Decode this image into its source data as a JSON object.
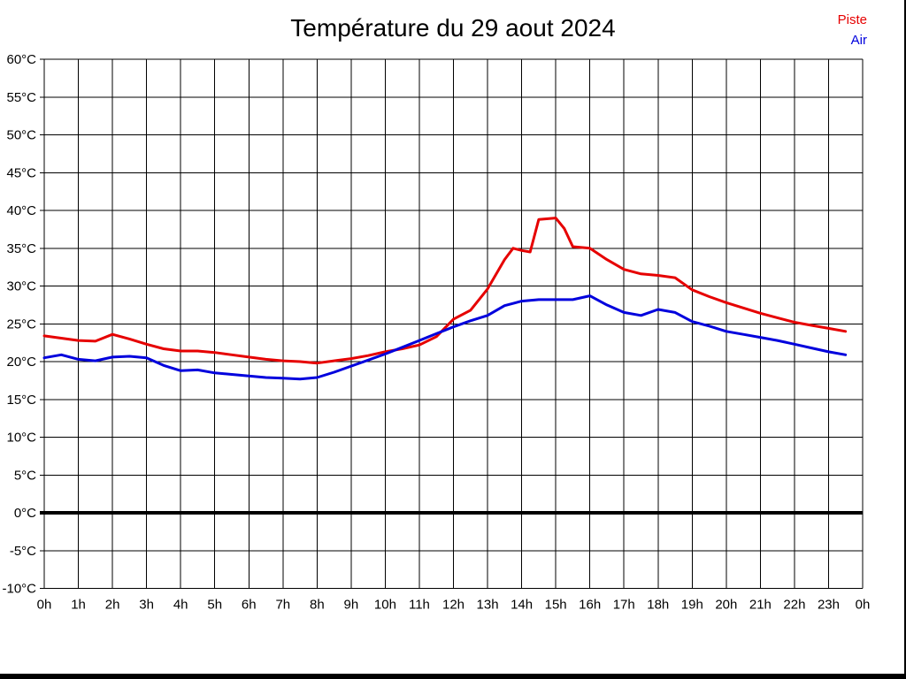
{
  "header": {
    "title": "Température du 29 aout 2024"
  },
  "legend": {
    "items": [
      {
        "label": "Piste",
        "color": "#e60000"
      },
      {
        "label": "Air",
        "color": "#0000dd"
      }
    ]
  },
  "colors": {
    "grid": "#000000",
    "zero_line": "#000000",
    "background": "#ffffff",
    "window_border": "#000000"
  },
  "chart_data": {
    "type": "line",
    "title": "Température du 29 aout 2024",
    "xlabel": "",
    "ylabel": "",
    "xlim": [
      0,
      24
    ],
    "ylim": [
      -10,
      60
    ],
    "y_tick_step": 5,
    "grid": true,
    "zero_line_bold": true,
    "legend_position": "top-right",
    "x_tick_labels": [
      "0h",
      "1h",
      "2h",
      "3h",
      "4h",
      "5h",
      "6h",
      "7h",
      "8h",
      "9h",
      "10h",
      "11h",
      "12h",
      "13h",
      "14h",
      "15h",
      "16h",
      "17h",
      "18h",
      "19h",
      "20h",
      "21h",
      "22h",
      "23h",
      "0h"
    ],
    "y_tick_labels": [
      "-10°C",
      "-5°C",
      "0°C",
      "5°C",
      "10°C",
      "15°C",
      "20°C",
      "25°C",
      "30°C",
      "35°C",
      "40°C",
      "45°C",
      "50°C",
      "55°C",
      "60°C"
    ],
    "x": [
      0,
      0.5,
      1,
      1.5,
      2,
      2.5,
      3,
      3.5,
      4,
      4.5,
      5,
      5.5,
      6,
      6.5,
      7,
      7.5,
      8,
      8.5,
      9,
      9.5,
      10,
      10.5,
      11,
      11.5,
      12,
      12.5,
      13,
      13.5,
      13.75,
      14,
      14.25,
      14.5,
      15,
      15.25,
      15.5,
      16,
      16.5,
      17,
      17.5,
      18,
      18.5,
      19,
      19.5,
      20,
      20.5,
      21,
      21.5,
      22,
      22.5,
      23,
      23.5
    ],
    "series": [
      {
        "name": "Piste",
        "color": "#e60000",
        "values": [
          23.4,
          23.1,
          22.8,
          22.7,
          23.6,
          23.0,
          22.3,
          21.7,
          21.4,
          21.4,
          21.2,
          20.9,
          20.6,
          20.3,
          20.1,
          20.0,
          19.8,
          20.1,
          20.4,
          20.8,
          21.3,
          21.7,
          22.2,
          23.3,
          25.6,
          26.8,
          29.6,
          33.5,
          35.0,
          34.7,
          34.5,
          38.8,
          39.0,
          37.6,
          35.2,
          35.0,
          33.5,
          32.2,
          31.6,
          31.4,
          31.1,
          29.5,
          28.6,
          27.8,
          27.1,
          26.4,
          25.8,
          25.2,
          24.8,
          24.4,
          24.0
        ]
      },
      {
        "name": "Air",
        "color": "#0000dd",
        "values": [
          20.5,
          20.9,
          20.3,
          20.1,
          20.6,
          20.7,
          20.5,
          19.5,
          18.8,
          18.9,
          18.5,
          18.3,
          18.1,
          17.9,
          17.8,
          17.7,
          17.9,
          18.6,
          19.4,
          20.2,
          21.0,
          21.9,
          22.8,
          23.7,
          24.6,
          25.4,
          26.1,
          27.4,
          27.7,
          28.0,
          28.1,
          28.2,
          28.2,
          28.2,
          28.2,
          28.7,
          27.5,
          26.5,
          26.1,
          26.9,
          26.5,
          25.3,
          24.7,
          24.0,
          23.6,
          23.2,
          22.8,
          22.3,
          21.8,
          21.3,
          20.9
        ]
      }
    ]
  }
}
